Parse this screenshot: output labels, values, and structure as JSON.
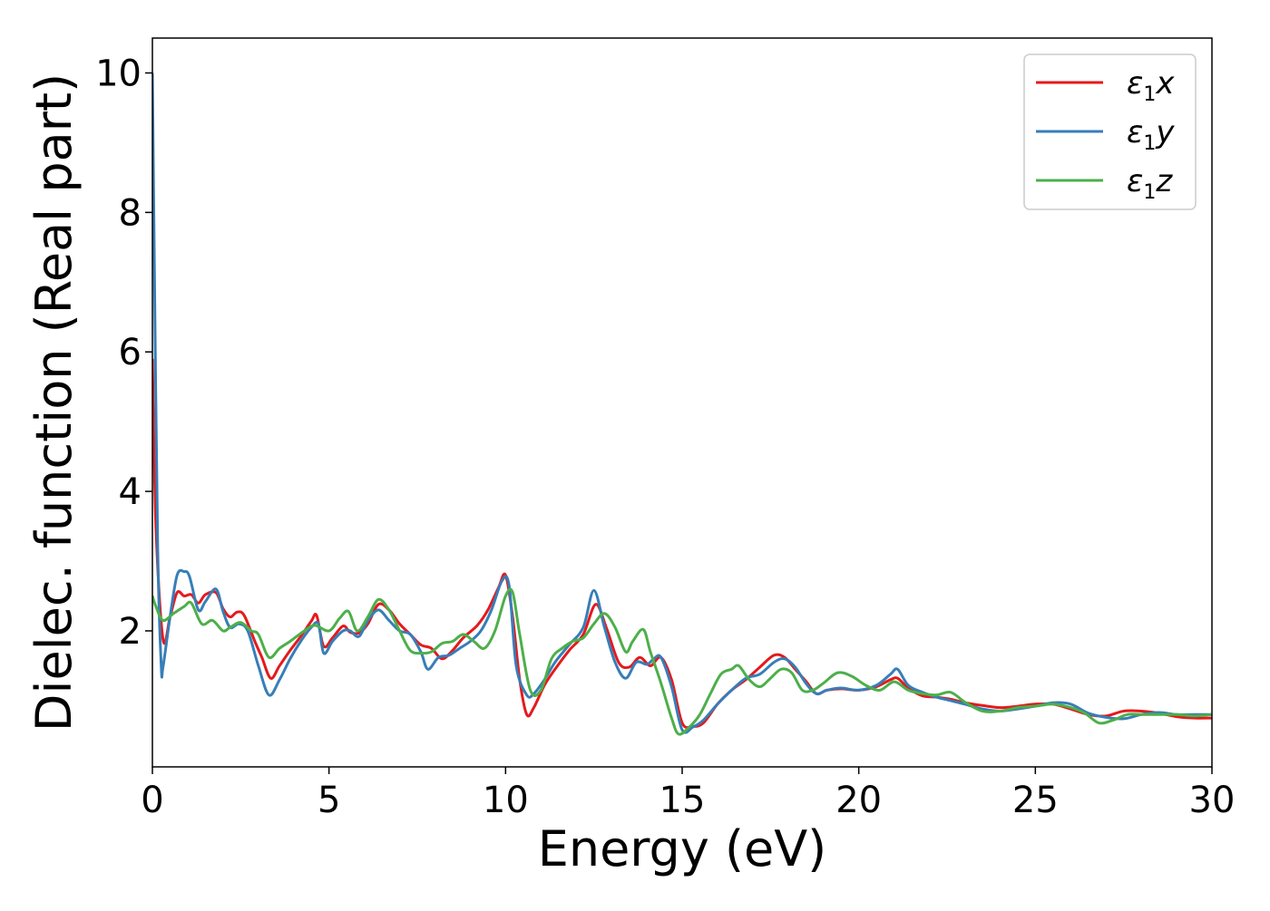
{
  "chart_data": {
    "type": "line",
    "title": "",
    "xlabel": "Energy (eV)",
    "ylabel": "Dielec. function (Real part)",
    "xlim": [
      0,
      30
    ],
    "ylim": [
      0.05,
      10.5
    ],
    "xticks": [
      0,
      5,
      10,
      15,
      20,
      25,
      30
    ],
    "yticks": [
      2,
      4,
      6,
      8,
      10
    ],
    "grid": false,
    "legend_position": "top-right",
    "series": [
      {
        "name": "ε1x",
        "legend_main": "ε",
        "legend_sub": "1",
        "legend_var": "x",
        "color": "#e41a1c",
        "x": [
          0,
          0.1,
          0.3,
          0.5,
          0.7,
          0.9,
          1.1,
          1.3,
          1.5,
          1.8,
          2.0,
          2.2,
          2.4,
          2.6,
          2.9,
          3.1,
          3.35,
          3.6,
          3.9,
          4.2,
          4.5,
          4.65,
          4.85,
          5.1,
          5.4,
          5.6,
          5.85,
          6.1,
          6.4,
          6.7,
          7.0,
          7.3,
          7.6,
          7.9,
          8.2,
          8.5,
          8.8,
          9.2,
          9.5,
          9.8,
          10.0,
          10.2,
          10.4,
          10.6,
          10.8,
          11.1,
          11.4,
          11.8,
          12.2,
          12.55,
          12.85,
          13.2,
          13.5,
          13.8,
          14.1,
          14.4,
          14.7,
          15.0,
          15.3,
          15.6,
          16.0,
          16.4,
          16.8,
          17.2,
          17.6,
          17.9,
          18.2,
          18.5,
          18.8,
          19.1,
          19.5,
          20.0,
          20.5,
          20.9,
          21.1,
          21.4,
          21.8,
          22.2,
          22.6,
          23.0,
          23.5,
          24.0,
          24.5,
          25.0,
          25.5,
          26.0,
          26.5,
          27.0,
          27.5,
          28.0,
          28.5,
          29.0,
          29.5,
          30.0
        ],
        "y": [
          5.9,
          3.5,
          1.88,
          2.2,
          2.55,
          2.5,
          2.52,
          2.4,
          2.52,
          2.55,
          2.32,
          2.2,
          2.27,
          2.22,
          1.85,
          1.62,
          1.32,
          1.5,
          1.72,
          1.92,
          2.14,
          2.22,
          1.78,
          1.9,
          2.07,
          1.98,
          1.97,
          2.1,
          2.38,
          2.3,
          2.1,
          1.95,
          1.8,
          1.75,
          1.6,
          1.72,
          1.9,
          2.08,
          2.3,
          2.62,
          2.8,
          2.2,
          1.3,
          0.8,
          0.9,
          1.22,
          1.45,
          1.72,
          1.95,
          2.38,
          2.05,
          1.55,
          1.48,
          1.62,
          1.5,
          1.62,
          1.3,
          0.68,
          0.63,
          0.68,
          0.95,
          1.15,
          1.3,
          1.48,
          1.65,
          1.62,
          1.45,
          1.28,
          1.1,
          1.15,
          1.17,
          1.15,
          1.2,
          1.3,
          1.32,
          1.18,
          1.07,
          1.05,
          1.02,
          0.97,
          0.93,
          0.9,
          0.92,
          0.95,
          0.95,
          0.88,
          0.8,
          0.78,
          0.85,
          0.85,
          0.82,
          0.77,
          0.75,
          0.75
        ]
      },
      {
        "name": "ε1y",
        "legend_main": "ε",
        "legend_sub": "1",
        "legend_var": "y",
        "color": "#377eb8",
        "x": [
          0,
          0.05,
          0.15,
          0.25,
          0.3,
          0.5,
          0.7,
          0.9,
          1.05,
          1.3,
          1.5,
          1.8,
          2.0,
          2.2,
          2.45,
          2.7,
          3.0,
          3.3,
          3.6,
          3.9,
          4.2,
          4.5,
          4.7,
          4.85,
          5.1,
          5.4,
          5.6,
          5.85,
          6.1,
          6.4,
          6.7,
          7.0,
          7.3,
          7.6,
          7.8,
          8.1,
          8.4,
          8.7,
          9.0,
          9.3,
          9.6,
          9.9,
          10.1,
          10.3,
          10.6,
          10.8,
          11.1,
          11.4,
          11.8,
          12.2,
          12.5,
          12.8,
          13.1,
          13.4,
          13.7,
          14.0,
          14.2,
          14.4,
          14.7,
          15.0,
          15.3,
          15.6,
          16.0,
          16.4,
          16.8,
          17.2,
          17.6,
          17.9,
          18.2,
          18.5,
          18.8,
          19.1,
          19.5,
          20.0,
          20.5,
          20.9,
          21.1,
          21.4,
          21.8,
          22.2,
          22.6,
          23.0,
          23.5,
          24.0,
          24.5,
          25.0,
          25.5,
          26.0,
          26.5,
          27.0,
          27.5,
          28.0,
          28.5,
          29.0,
          29.5,
          30.0
        ],
        "y": [
          10.0,
          7.5,
          3.2,
          1.5,
          1.48,
          2.2,
          2.8,
          2.85,
          2.78,
          2.3,
          2.42,
          2.6,
          2.28,
          2.05,
          2.1,
          2.0,
          1.5,
          1.08,
          1.3,
          1.6,
          1.85,
          2.05,
          2.1,
          1.68,
          1.85,
          2.0,
          2.0,
          1.92,
          2.15,
          2.3,
          2.15,
          2.0,
          1.95,
          1.7,
          1.45,
          1.62,
          1.65,
          1.75,
          1.85,
          2.0,
          2.3,
          2.72,
          2.65,
          1.5,
          1.08,
          1.1,
          1.3,
          1.55,
          1.8,
          2.05,
          2.58,
          2.05,
          1.55,
          1.32,
          1.55,
          1.52,
          1.6,
          1.62,
          1.2,
          0.58,
          0.62,
          0.72,
          0.95,
          1.15,
          1.32,
          1.38,
          1.55,
          1.6,
          1.48,
          1.25,
          1.1,
          1.15,
          1.18,
          1.15,
          1.22,
          1.38,
          1.45,
          1.22,
          1.12,
          1.05,
          1.0,
          0.95,
          0.88,
          0.85,
          0.88,
          0.92,
          0.97,
          0.95,
          0.82,
          0.76,
          0.74,
          0.8,
          0.83,
          0.8,
          0.8,
          0.8
        ]
      },
      {
        "name": "ε1z",
        "legend_main": "ε",
        "legend_sub": "1",
        "legend_var": "z",
        "color": "#4daf4a",
        "x": [
          0,
          0.1,
          0.3,
          0.6,
          0.9,
          1.1,
          1.4,
          1.7,
          2.0,
          2.2,
          2.5,
          2.8,
          3.0,
          3.3,
          3.6,
          3.9,
          4.3,
          4.6,
          5.0,
          5.3,
          5.55,
          5.8,
          6.1,
          6.4,
          6.7,
          7.0,
          7.3,
          7.6,
          7.9,
          8.2,
          8.5,
          8.8,
          9.1,
          9.4,
          9.7,
          10.0,
          10.2,
          10.4,
          10.7,
          11.0,
          11.3,
          11.6,
          11.9,
          12.2,
          12.5,
          12.8,
          13.1,
          13.4,
          13.6,
          13.9,
          14.1,
          14.4,
          14.7,
          14.9,
          15.2,
          15.5,
          15.8,
          16.1,
          16.4,
          16.6,
          16.9,
          17.2,
          17.5,
          17.8,
          18.1,
          18.4,
          18.7,
          19.0,
          19.4,
          19.8,
          20.2,
          20.6,
          21.0,
          21.4,
          21.8,
          22.2,
          22.6,
          23.0,
          23.5,
          24.0,
          24.5,
          25.0,
          25.5,
          26.0,
          26.4,
          26.8,
          27.2,
          27.6,
          28.0,
          28.5,
          29.0,
          29.5,
          30.0
        ],
        "y": [
          2.5,
          2.35,
          2.15,
          2.25,
          2.35,
          2.4,
          2.1,
          2.15,
          2.0,
          2.05,
          2.12,
          2.0,
          1.95,
          1.62,
          1.75,
          1.85,
          2.0,
          2.08,
          2.0,
          2.18,
          2.28,
          2.0,
          2.2,
          2.45,
          2.3,
          2.0,
          1.72,
          1.68,
          1.7,
          1.82,
          1.85,
          1.95,
          1.85,
          1.75,
          2.0,
          2.5,
          2.55,
          1.95,
          1.15,
          1.15,
          1.6,
          1.75,
          1.85,
          1.9,
          2.1,
          2.25,
          2.05,
          1.7,
          1.85,
          2.02,
          1.7,
          1.25,
          0.75,
          0.52,
          0.62,
          0.8,
          1.1,
          1.38,
          1.45,
          1.5,
          1.3,
          1.2,
          1.32,
          1.45,
          1.4,
          1.15,
          1.15,
          1.25,
          1.4,
          1.35,
          1.22,
          1.15,
          1.27,
          1.15,
          1.1,
          1.08,
          1.12,
          0.98,
          0.85,
          0.85,
          0.9,
          0.92,
          0.95,
          0.9,
          0.82,
          0.68,
          0.72,
          0.8,
          0.8,
          0.8,
          0.8,
          0.78,
          0.8
        ]
      }
    ]
  }
}
